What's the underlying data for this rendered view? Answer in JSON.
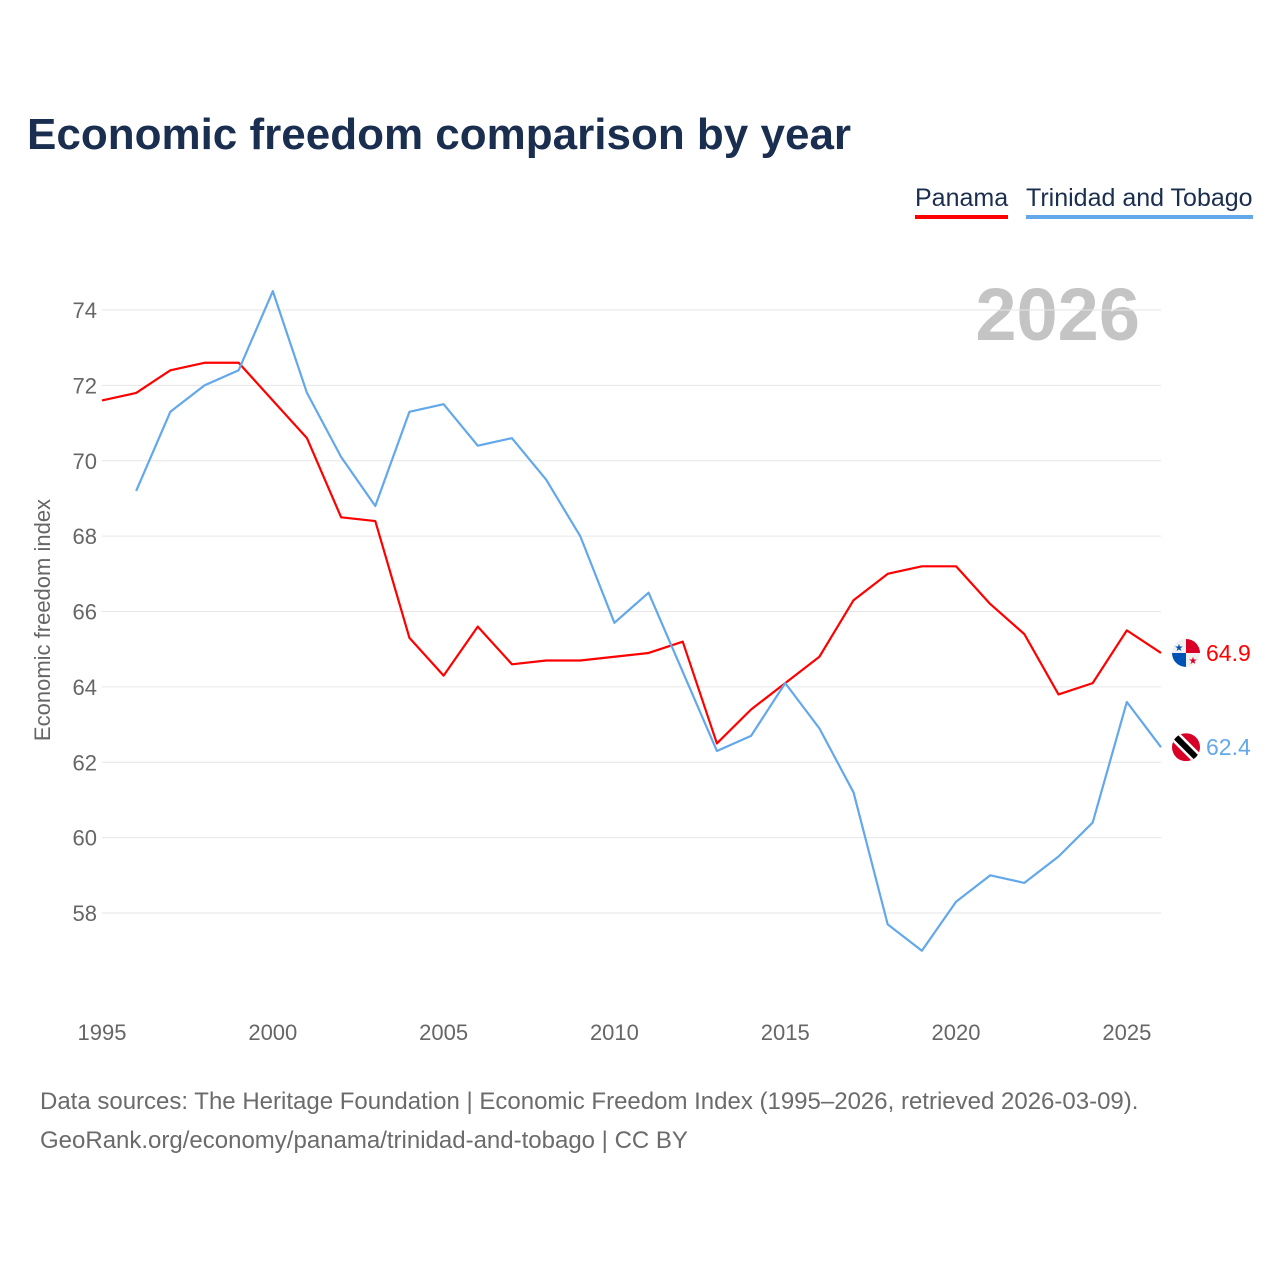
{
  "chart_data": {
    "type": "line",
    "title": "Economic freedom comparison by year",
    "ylabel": "Economic freedom index",
    "xlabel": "",
    "year_label": "2026",
    "xlim": [
      1995,
      2026
    ],
    "ylim": [
      56,
      74.6
    ],
    "yticks": [
      58,
      60,
      62,
      64,
      66,
      68,
      70,
      72,
      74
    ],
    "xticks": [
      1995,
      2000,
      2005,
      2010,
      2015,
      2020,
      2025
    ],
    "grid": true,
    "legend_position": "top-right",
    "series": [
      {
        "name": "Panama",
        "color": "#ff0000",
        "end_label": "64.9",
        "flag": "panama-flag",
        "x": [
          1995,
          1996,
          1997,
          1998,
          1999,
          2000,
          2001,
          2002,
          2003,
          2004,
          2005,
          2006,
          2007,
          2008,
          2009,
          2010,
          2011,
          2012,
          2013,
          2014,
          2015,
          2016,
          2017,
          2018,
          2019,
          2020,
          2021,
          2022,
          2023,
          2024,
          2025,
          2026
        ],
        "values": [
          71.6,
          71.8,
          72.4,
          72.6,
          72.6,
          71.6,
          70.6,
          68.5,
          68.4,
          65.3,
          64.3,
          65.6,
          64.6,
          64.7,
          64.7,
          64.8,
          64.9,
          65.2,
          62.5,
          63.4,
          64.1,
          64.8,
          66.3,
          67.0,
          67.2,
          67.2,
          66.2,
          65.4,
          63.8,
          64.1,
          65.5,
          64.9
        ]
      },
      {
        "name": "Trinidad and Tobago",
        "color": "#62a8ea",
        "end_label": "62.4",
        "flag": "trinidad-and-tobago-flag",
        "x": [
          1996,
          1997,
          1998,
          1999,
          2000,
          2001,
          2002,
          2003,
          2004,
          2005,
          2006,
          2007,
          2008,
          2009,
          2010,
          2011,
          2012,
          2013,
          2014,
          2015,
          2016,
          2017,
          2018,
          2019,
          2020,
          2021,
          2022,
          2023,
          2024,
          2025,
          2026
        ],
        "values": [
          69.2,
          71.3,
          72.0,
          72.4,
          74.5,
          71.8,
          70.1,
          68.8,
          71.3,
          71.5,
          70.4,
          70.6,
          69.5,
          68.0,
          65.7,
          66.5,
          64.4,
          62.3,
          62.7,
          64.1,
          62.9,
          61.2,
          57.7,
          57.0,
          58.3,
          59.0,
          58.8,
          59.5,
          60.4,
          63.6,
          62.4
        ]
      }
    ]
  },
  "legend": {
    "panama": "Panama",
    "tt": "Trinidad and Tobago"
  },
  "footer": {
    "line1": "Data sources: The Heritage Foundation | Economic Freedom Index (1995–2026, retrieved 2026-03-09).",
    "line2": "GeoRank.org/economy/panama/trinidad-and-tobago | CC BY"
  }
}
